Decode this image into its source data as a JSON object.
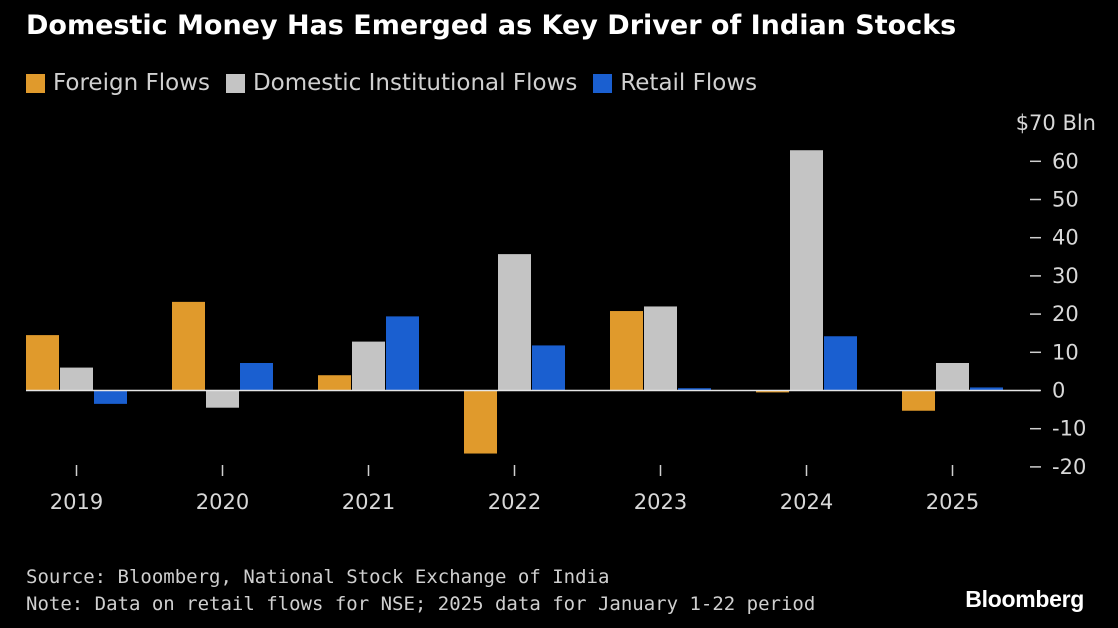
{
  "chart_data": {
    "type": "bar",
    "title": "Domestic Money Has Emerged as Key Driver of Indian Stocks",
    "categories": [
      "2019",
      "2020",
      "2021",
      "2022",
      "2023",
      "2024",
      "2025"
    ],
    "series": [
      {
        "name": "Foreign Flows",
        "color": "#e09a2c",
        "values": [
          14.5,
          23.2,
          4.0,
          -16.5,
          20.8,
          -0.5,
          -5.3
        ]
      },
      {
        "name": "Domestic Institutional Flows",
        "color": "#c4c4c4",
        "values": [
          6.0,
          -4.5,
          12.8,
          35.7,
          22.0,
          62.9,
          7.2
        ]
      },
      {
        "name": "Retail Flows",
        "color": "#1a5fd0",
        "values": [
          -3.5,
          7.2,
          19.4,
          11.8,
          0.6,
          14.2,
          0.8
        ]
      }
    ],
    "yaxis": {
      "position": "right",
      "ticks": [
        70,
        60,
        50,
        40,
        30,
        20,
        10,
        0,
        -10,
        -20
      ],
      "tick_labels": [
        "$70 Bln",
        "60",
        "50",
        "40",
        "30",
        "20",
        "10",
        "0",
        "-10",
        "-20"
      ],
      "range": [
        -20,
        70
      ]
    },
    "grid": false,
    "legend_position": "top-left"
  },
  "footer": {
    "source": "Source: Bloomberg, National Stock Exchange of India",
    "note": "Note: Data on retail flows for NSE; 2025 data for January 1-22 period"
  },
  "brand": "Bloomberg"
}
